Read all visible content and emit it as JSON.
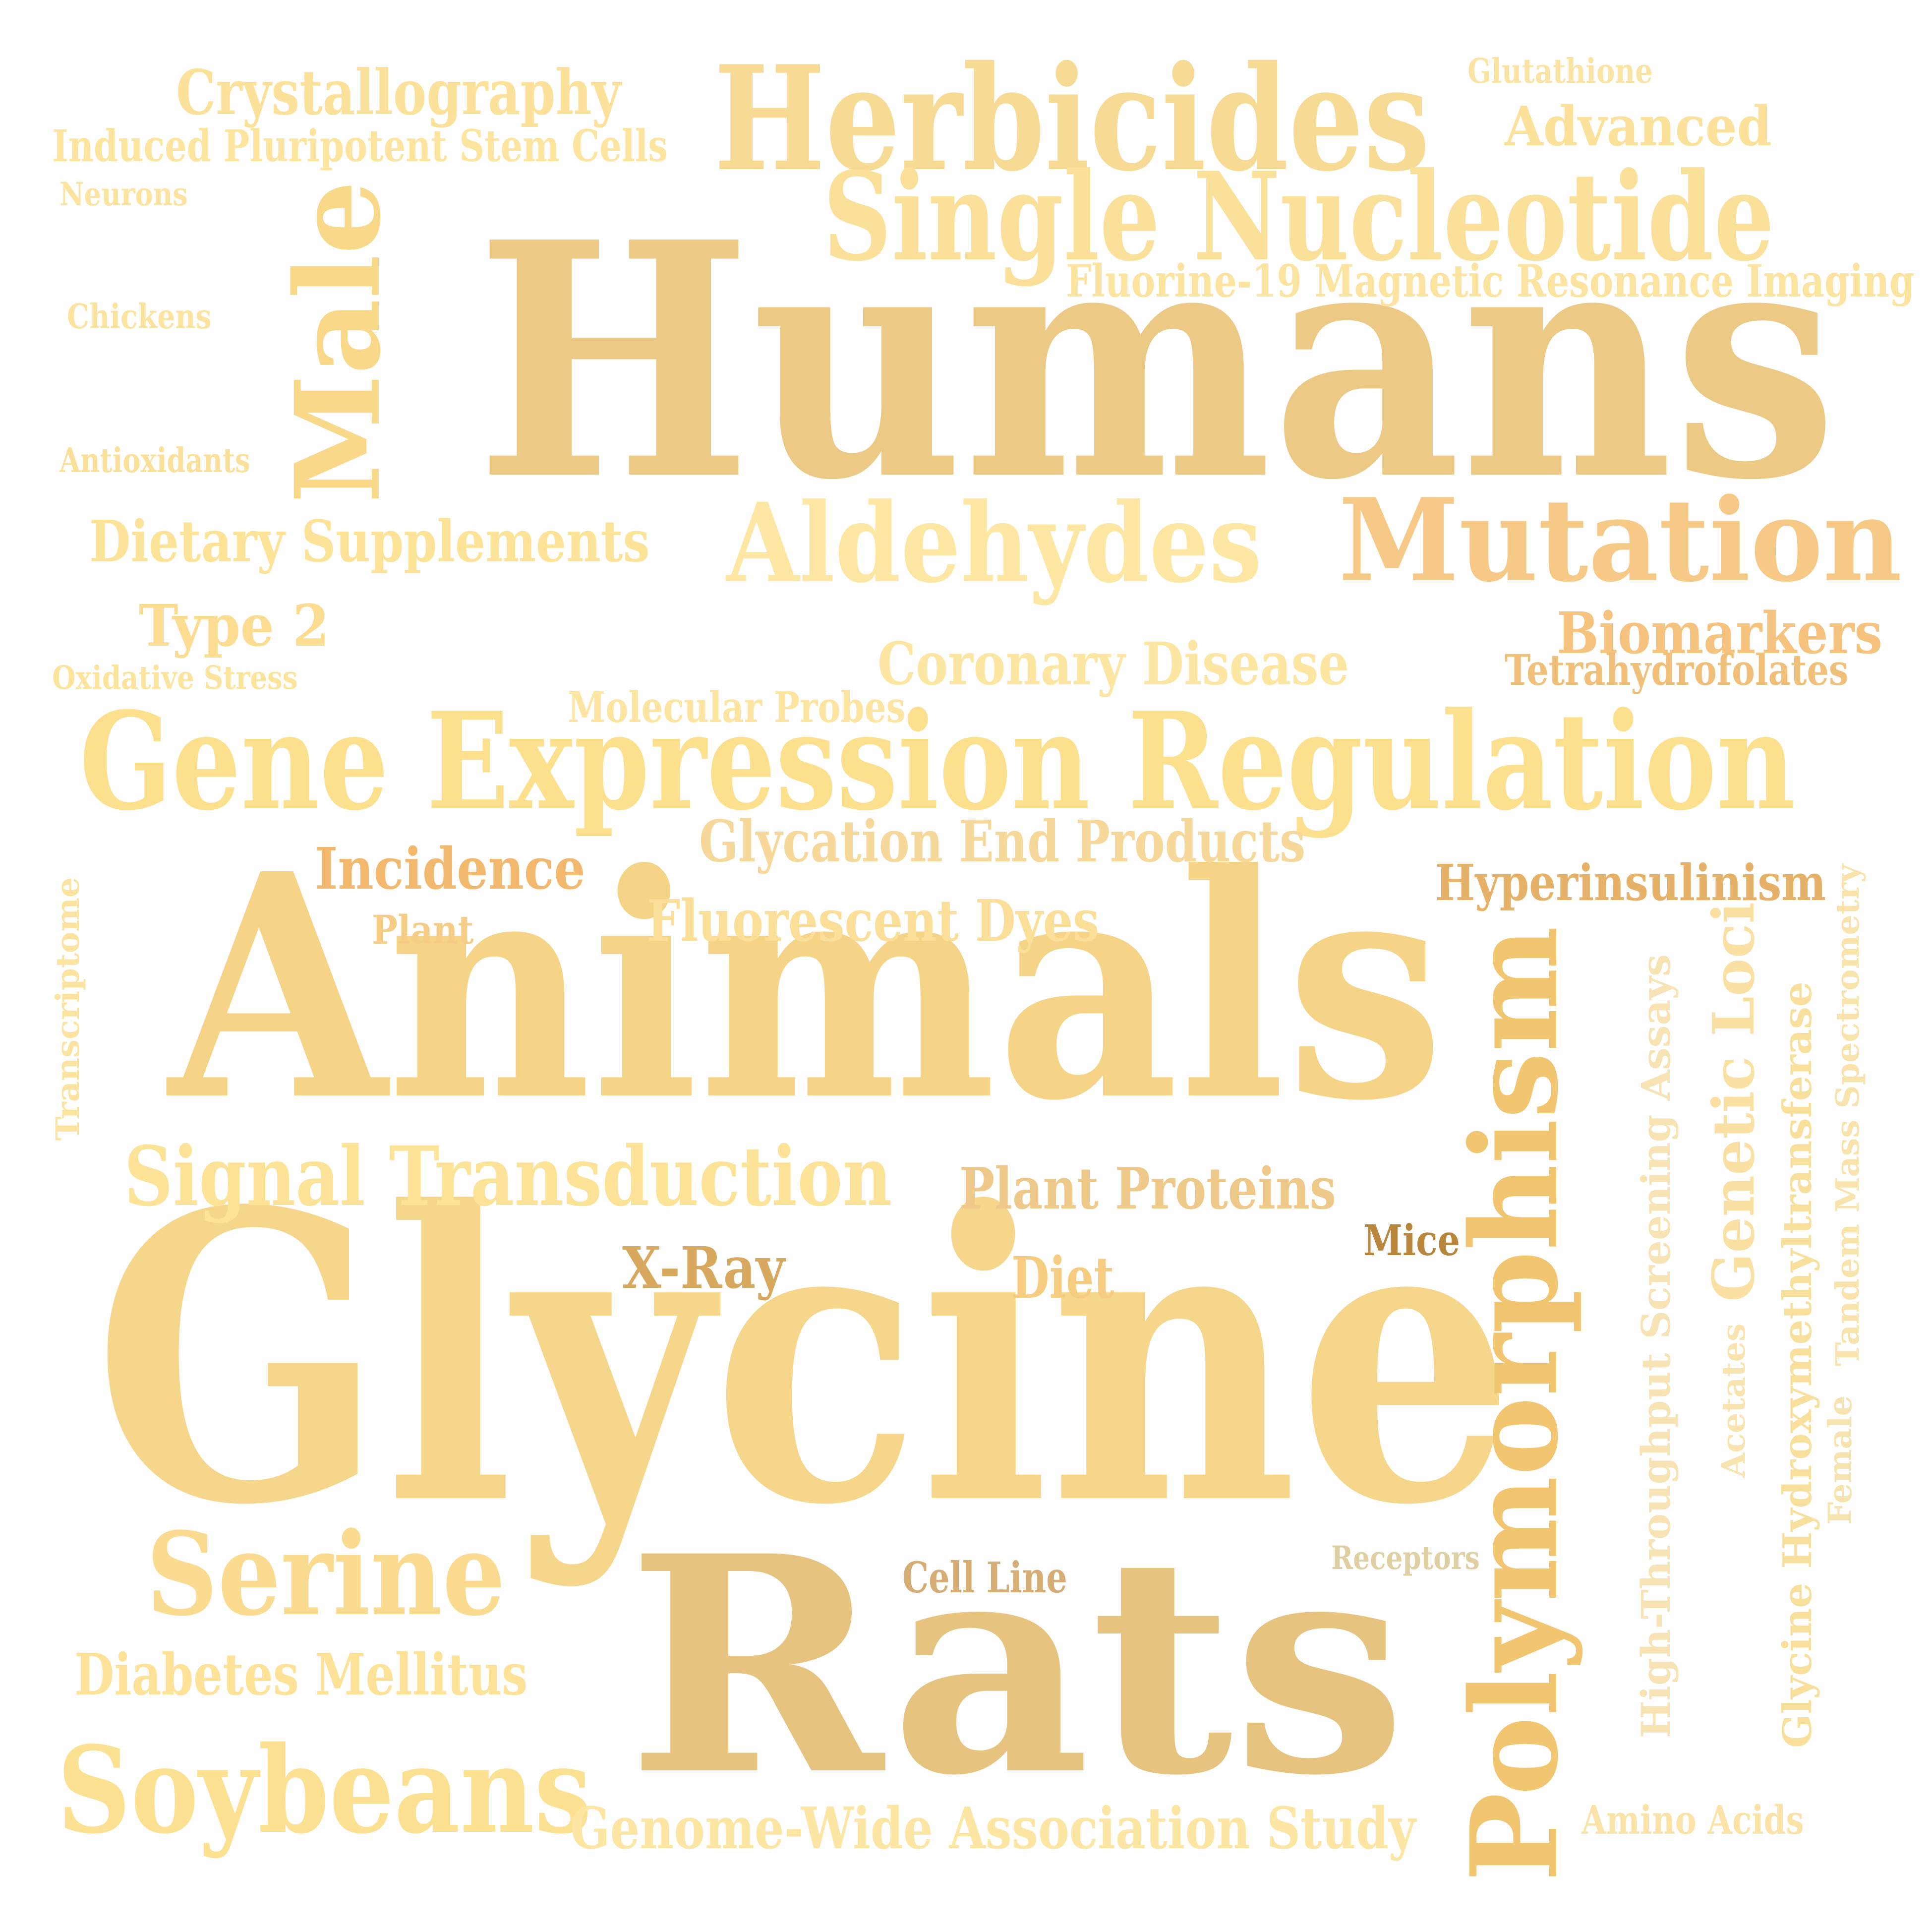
{
  "words": [
    {
      "text": "Humans",
      "color": "#ecc985"
    },
    {
      "text": "Glycine",
      "color": "#f6d68b"
    },
    {
      "text": "Animals",
      "color": "#f5d487"
    },
    {
      "text": "Rats",
      "color": "#e6c47f"
    },
    {
      "text": "Gene Expression Regulation",
      "color": "#fde08e"
    },
    {
      "text": "Herbicides",
      "color": "#f7da94"
    },
    {
      "text": "Single Nucleotide",
      "color": "#fbe09a"
    },
    {
      "text": "Polymorphism",
      "color": "#f2c670"
    },
    {
      "text": "Aldehydes",
      "color": "#fde7a2"
    },
    {
      "text": "Mutation",
      "color": "#f6ca86"
    },
    {
      "text": "Male",
      "color": "#f9d889"
    },
    {
      "text": "Soybeans",
      "color": "#fde192"
    },
    {
      "text": "Serine",
      "color": "#fbdb90"
    },
    {
      "text": "Signal Transduction",
      "color": "#fde398"
    },
    {
      "text": "Crystallography",
      "color": "#fbe19a"
    },
    {
      "text": "Induced Pluripotent Stem Cells",
      "color": "#fde59f"
    },
    {
      "text": "Glutathione",
      "color": "#fbe3a4"
    },
    {
      "text": "Advanced",
      "color": "#fbe19a"
    },
    {
      "text": "Neurons",
      "color": "#fce3a0"
    },
    {
      "text": "Fluorine-19 Magnetic Resonance Imaging",
      "color": "#fce3a0"
    },
    {
      "text": "Chickens",
      "color": "#fce3a0"
    },
    {
      "text": "Antioxidants",
      "color": "#fbe09c"
    },
    {
      "text": "Dietary Supplements",
      "color": "#fde398"
    },
    {
      "text": "Type 2",
      "color": "#fbdc91"
    },
    {
      "text": "Oxidative Stress",
      "color": "#fde49c"
    },
    {
      "text": "Coronary Disease",
      "color": "#fde5a2"
    },
    {
      "text": "Biomarkers",
      "color": "#f6c37e"
    },
    {
      "text": "Tetrahydrofolates",
      "color": "#f0c07a"
    },
    {
      "text": "Molecular Probes",
      "color": "#fde4a0"
    },
    {
      "text": "Glycation End Products",
      "color": "#f5d89a"
    },
    {
      "text": "Incidence",
      "color": "#f2b96e"
    },
    {
      "text": "Hyperinsulinism",
      "color": "#e6b26a"
    },
    {
      "text": "Plant",
      "color": "#f5cd86"
    },
    {
      "text": "Fluorescent Dyes",
      "color": "#fbde98"
    },
    {
      "text": "Transcriptome",
      "color": "#fde3a0"
    },
    {
      "text": "Plant Proteins",
      "color": "#eec98a"
    },
    {
      "text": "Mice",
      "color": "#b8863c"
    },
    {
      "text": "X-Ray",
      "color": "#d9a85f"
    },
    {
      "text": "Diet",
      "color": "#f6cd80"
    },
    {
      "text": "High-Throughput Screening Assays",
      "color": "#f7e3b4"
    },
    {
      "text": "Genetic Loci",
      "color": "#fbe0a4"
    },
    {
      "text": "Glycine Hydroxymethyltransferase",
      "color": "#f8df9c"
    },
    {
      "text": "Tandem Mass Spectrometry",
      "color": "#f9e3ad"
    },
    {
      "text": "Acetates",
      "color": "#f9e4b0"
    },
    {
      "text": "Female",
      "color": "#f7e3b0"
    },
    {
      "text": "Receptors",
      "color": "#e0cfa2"
    },
    {
      "text": "Cell Line",
      "color": "#d6ad74"
    },
    {
      "text": "Diabetes Mellitus",
      "color": "#fde298"
    },
    {
      "text": "Genome-Wide Association Study",
      "color": "#fde5a4"
    },
    {
      "text": "Amino Acids",
      "color": "#fbe3a8"
    }
  ]
}
